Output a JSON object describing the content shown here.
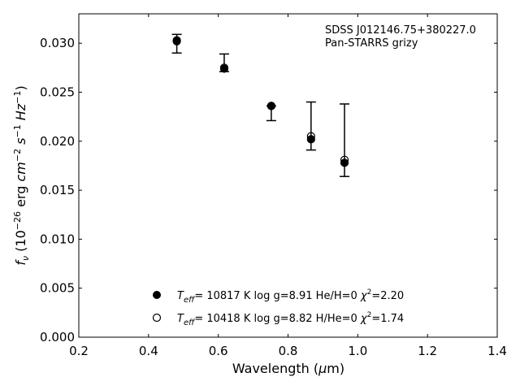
{
  "chart_data": {
    "type": "scatter",
    "title": "",
    "xlabel": {
      "main": "Wavelength (",
      "mu": "μ",
      "rest": "m)"
    },
    "ylabel": {
      "f": "f",
      "nu": "ν",
      "open": " (10",
      "exp1": "−26",
      "erg": " erg ",
      "cm": "cm",
      "exp2": "−2",
      "s": " s",
      "exp3": "−1",
      "hz": " Hz",
      "exp4": "−1",
      "close": ")"
    },
    "xlim": [
      0.2,
      1.4
    ],
    "ylim": [
      0.0,
      0.033
    ],
    "xticks": [
      0.2,
      0.4,
      0.6,
      0.8,
      1.0,
      1.2,
      1.4
    ],
    "xtick_labels": [
      "0.2",
      "0.4",
      "0.6",
      "0.8",
      "1.0",
      "1.2",
      "1.4"
    ],
    "yticks": [
      0.0,
      0.005,
      0.01,
      0.015,
      0.02,
      0.025,
      0.03
    ],
    "ytick_labels": [
      "0.000",
      "0.005",
      "0.010",
      "0.015",
      "0.020",
      "0.025",
      "0.030"
    ],
    "grid": false,
    "annotation": [
      "SDSS J012146.75+380227.0",
      "Pan-STARRS grizy"
    ],
    "observed": {
      "x": [
        0.481,
        0.617,
        0.752,
        0.866,
        0.962
      ],
      "y": [
        0.03,
        0.0274,
        0.0236,
        0.0221,
        0.0201
      ],
      "yerr_low": [
        0.001,
        0.0003,
        0.0015,
        0.003,
        0.0037
      ],
      "yerr_high": [
        0.0009,
        0.0015,
        0.0,
        0.0019,
        0.0037
      ]
    },
    "series": [
      {
        "marker": "filled",
        "x": [
          0.481,
          0.617,
          0.752,
          0.866,
          0.962
        ],
        "y": [
          0.0302,
          0.0274,
          0.0236,
          0.0202,
          0.0178
        ],
        "legend": {
          "T": "T",
          "sub": "eff",
          "mid": "= 10817 K  log g=8.91  He/H=0  ",
          "chi": "χ",
          "sup": "2",
          "end": "=2.20"
        }
      },
      {
        "marker": "open",
        "x": [
          0.481,
          0.617,
          0.752,
          0.866,
          0.962
        ],
        "y": [
          0.0303,
          0.0275,
          0.0236,
          0.0205,
          0.0181
        ],
        "legend": {
          "T": "T",
          "sub": "eff",
          "mid": "= 10418 K  log g=8.82  H/He=0  ",
          "chi": "χ",
          "sup": "2",
          "end": "=1.74"
        }
      }
    ],
    "legend_location": "lower-center"
  }
}
